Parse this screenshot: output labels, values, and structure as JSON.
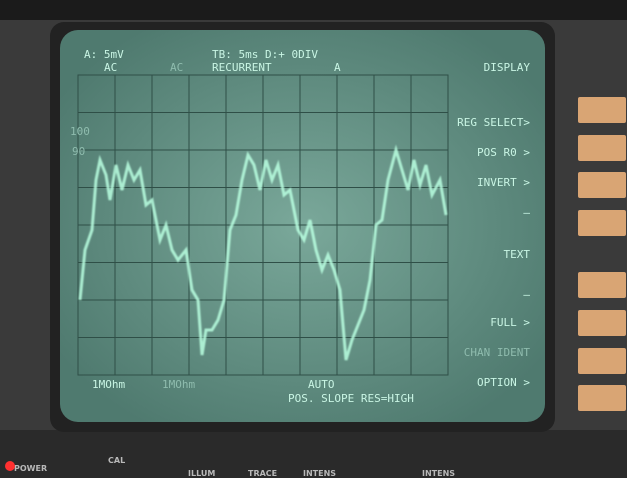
{
  "screen": {
    "channel": "A:  5mV",
    "coupling": "AC",
    "coupling_b": "AC",
    "timebase": "TB:  5ms D:+   0DIV",
    "mode": "RECURRENT",
    "trigger_source": "A",
    "scale_labels": [
      "100",
      "90"
    ],
    "input_impedance": "1MOhm",
    "input_impedance_b": "1MOhm",
    "trigger_mode": "AUTO",
    "trigger_info": "POS. SLOPE  RES=HIGH"
  },
  "softkeys": [
    "DISPLAY",
    "REG SELECT>",
    "POS  R0  >",
    "INVERT >",
    "—",
    "TEXT",
    "—",
    "FULL  >",
    "CHAN IDENT",
    "OPTION  >"
  ],
  "panel": [
    "POWER",
    "CAL",
    "ILLUM",
    "TRACE",
    "INTENS",
    "INTENS"
  ]
}
